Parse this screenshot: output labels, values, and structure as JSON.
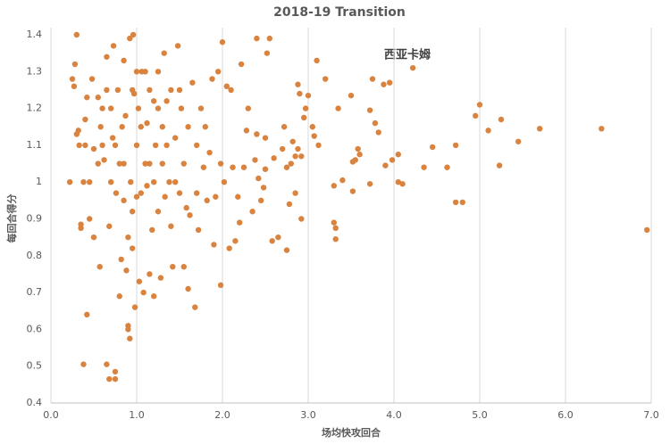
{
  "chart_data": {
    "type": "scatter",
    "title": "2018-19  Transition",
    "x_label": "场均快攻回合",
    "y_label": "每回合得分",
    "annotations": [
      "西亚卡姆"
    ],
    "color": "#d9833f",
    "grid": "x",
    "xlim": [
      0,
      7
    ],
    "ylim": [
      0.4,
      1.4
    ],
    "xticks": [
      {
        "value": 0,
        "label": "0.0"
      },
      {
        "value": 1,
        "label": "1.0"
      },
      {
        "value": 2,
        "label": "2.0"
      },
      {
        "value": 3,
        "label": "3.0"
      },
      {
        "value": 4,
        "label": "4.0"
      },
      {
        "value": 5,
        "label": "5.0"
      },
      {
        "value": 6,
        "label": "6.0"
      },
      {
        "value": 7,
        "label": "7.0"
      }
    ],
    "yticks": [
      0.4,
      0.5,
      0.6,
      0.7,
      0.8,
      0.9,
      1,
      1.1,
      1.2,
      1.3,
      1.4
    ],
    "x": [
      6.95,
      6.42,
      5.7,
      5.45,
      5.25,
      5.23,
      5.1,
      5.0,
      4.95,
      4.8,
      4.72,
      4.72,
      4.62,
      4.45,
      4.35,
      4.22,
      4.1,
      4.05,
      4.05,
      3.98,
      3.95,
      3.9,
      3.88,
      3.82,
      3.78,
      3.75,
      3.72,
      3.72,
      3.6,
      3.58,
      3.55,
      3.52,
      3.52,
      3.5,
      3.4,
      3.35,
      3.32,
      3.32,
      3.3,
      3.3,
      3.2,
      3.12,
      3.1,
      3.07,
      3.05,
      3.0,
      2.97,
      2.95,
      2.92,
      2.92,
      2.9,
      2.88,
      2.88,
      2.85,
      2.85,
      2.82,
      2.8,
      2.78,
      2.75,
      2.75,
      2.72,
      2.7,
      2.65,
      2.6,
      2.58,
      2.55,
      2.52,
      2.5,
      2.5,
      2.48,
      2.45,
      2.42,
      2.4,
      2.4,
      2.38,
      2.35,
      2.3,
      2.28,
      2.25,
      2.22,
      2.2,
      2.18,
      2.15,
      2.12,
      2.1,
      2.08,
      2.05,
      2.02,
      2.0,
      1.98,
      1.98,
      1.95,
      1.92,
      1.9,
      0.22,
      0.25,
      0.27,
      0.28,
      0.3,
      0.3,
      0.32,
      0.33,
      0.35,
      0.35,
      0.38,
      0.38,
      0.4,
      0.4,
      0.42,
      0.42,
      0.45,
      0.48,
      0.5,
      0.5,
      0.55,
      0.57,
      0.58,
      0.6,
      0.62,
      0.65,
      0.65,
      0.68,
      0.68,
      0.7,
      0.7,
      0.72,
      0.73,
      0.75,
      0.75,
      0.76,
      0.78,
      0.8,
      0.8,
      0.82,
      0.83,
      0.85,
      0.85,
      0.87,
      0.88,
      0.9,
      0.9,
      0.92,
      0.92,
      0.93,
      0.95,
      0.95,
      0.96,
      0.97,
      0.98,
      1.0,
      1.0,
      1.02,
      1.03,
      1.05,
      1.06,
      1.08,
      1.1,
      1.12,
      1.12,
      1.15,
      1.15,
      1.18,
      1.2,
      1.2,
      1.22,
      1.25,
      1.25,
      1.28,
      1.3,
      1.3,
      1.32,
      1.33,
      1.35,
      1.38,
      1.4,
      1.42,
      1.45,
      1.48,
      1.5,
      1.52,
      1.55,
      1.55,
      1.58,
      1.6,
      1.62,
      1.65,
      1.68,
      1.7,
      1.72,
      1.75,
      1.78,
      1.8,
      1.82,
      1.85,
      1.88,
      0.6,
      0.55,
      0.45,
      0.85,
      1.0,
      1.1,
      1.35,
      1.2,
      0.9,
      1.45,
      1.6,
      0.75,
      1.05,
      1.25,
      0.95,
      1.4,
      1.15,
      0.65,
      1.7,
      1.5
    ],
    "values": [
      0.87,
      1.145,
      1.145,
      1.11,
      1.17,
      1.045,
      1.14,
      1.21,
      1.18,
      0.945,
      0.945,
      1.1,
      1.04,
      1.095,
      1.04,
      1.31,
      0.995,
      1.0,
      1.075,
      1.06,
      1.27,
      1.045,
      1.265,
      1.135,
      1.16,
      1.28,
      1.195,
      0.995,
      1.075,
      1.09,
      1.06,
      1.055,
      0.975,
      1.235,
      1.005,
      1.2,
      0.845,
      0.875,
      0.89,
      0.99,
      1.28,
      1.1,
      1.33,
      1.125,
      1.15,
      1.235,
      1.2,
      1.175,
      1.07,
      0.9,
      1.24,
      1.265,
      1.09,
      1.07,
      0.97,
      1.11,
      1.05,
      0.94,
      0.815,
      1.04,
      1.15,
      1.09,
      0.85,
      1.065,
      0.84,
      1.39,
      1.35,
      1.035,
      1.12,
      0.985,
      0.95,
      1.01,
      1.39,
      1.13,
      1.06,
      0.92,
      1.2,
      1.14,
      1.04,
      1.32,
      0.89,
      0.96,
      0.84,
      1.04,
      1.25,
      0.82,
      1.26,
      1.0,
      1.38,
      1.05,
      0.72,
      1.3,
      0.96,
      0.83,
      1.0,
      1.28,
      1.26,
      1.32,
      1.4,
      1.13,
      1.14,
      1.1,
      0.875,
      0.885,
      1.0,
      0.505,
      1.17,
      1.1,
      0.64,
      1.23,
      0.9,
      1.28,
      0.85,
      1.09,
      1.23,
      0.77,
      1.15,
      1.1,
      1.06,
      1.34,
      0.505,
      0.465,
      0.88,
      1.0,
      1.2,
      1.12,
      1.37,
      0.485,
      0.465,
      0.97,
      1.25,
      1.05,
      0.69,
      0.79,
      1.15,
      0.95,
      1.33,
      1.18,
      0.76,
      0.61,
      0.6,
      0.575,
      1.39,
      1.0,
      0.92,
      0.82,
      1.4,
      1.24,
      0.66,
      1.1,
      0.96,
      1.2,
      0.73,
      0.97,
      1.3,
      0.7,
      1.05,
      0.99,
      1.16,
      0.75,
      1.25,
      0.87,
      1.22,
      0.69,
      1.1,
      0.92,
      1.3,
      0.74,
      1.05,
      1.15,
      1.35,
      0.96,
      1.22,
      1.0,
      0.88,
      0.77,
      1.12,
      1.37,
      0.97,
      1.2,
      0.77,
      1.05,
      0.93,
      0.71,
      0.91,
      1.27,
      0.66,
      1.1,
      0.87,
      1.2,
      1.04,
      1.15,
      0.95,
      1.08,
      1.28,
      1.2,
      1.05,
      1.0,
      1.05,
      1.3,
      1.3,
      1.1,
      1.0,
      0.85,
      1.0,
      1.15,
      1.1,
      1.15,
      1.2,
      1.25,
      1.25,
      1.05,
      1.25,
      0.97,
      1.25
    ]
  }
}
